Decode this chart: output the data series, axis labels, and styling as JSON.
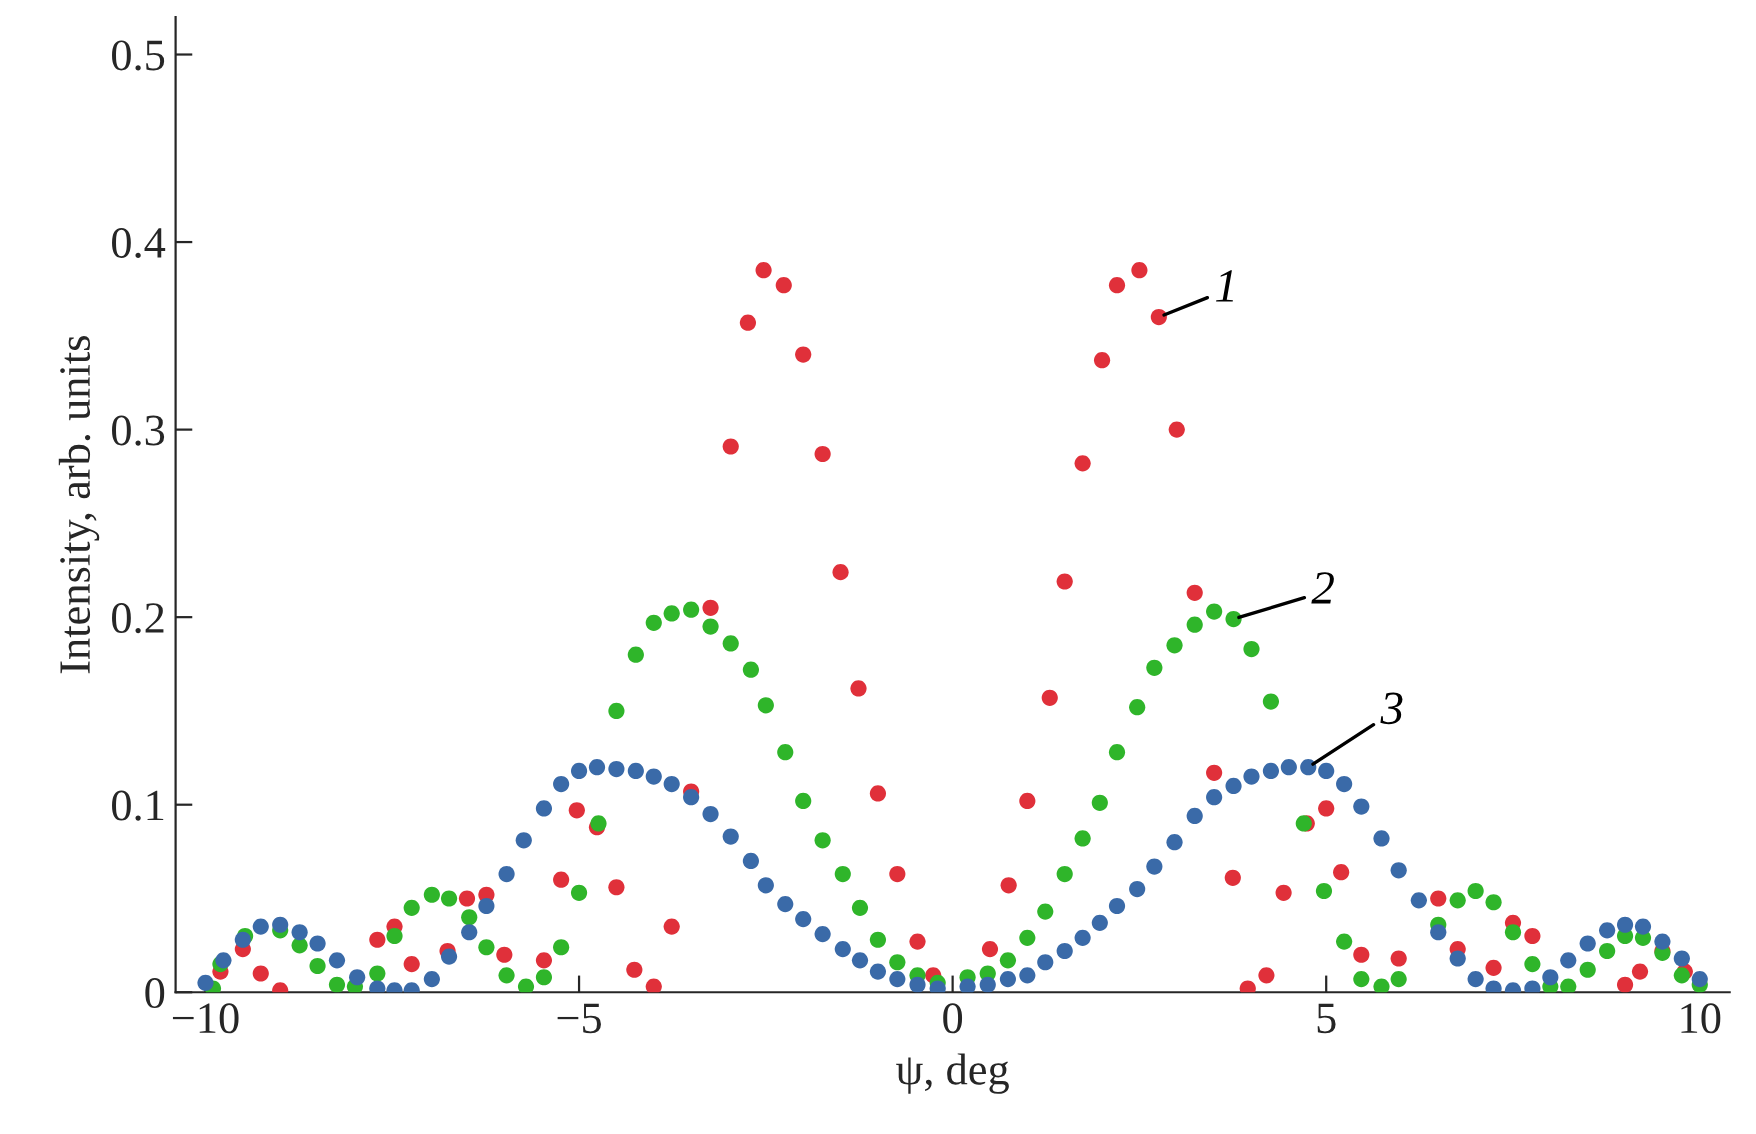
{
  "chart_data": {
    "type": "scatter",
    "xlabel": "ψ, deg",
    "ylabel": "Intensity, arb. units",
    "xlim": [
      -10.4,
      10.4
    ],
    "ylim": [
      0,
      0.52
    ],
    "xticks": [
      {
        "value": -10,
        "label": "−10"
      },
      {
        "value": -5,
        "label": "−5"
      },
      0,
      5,
      10
    ],
    "yticks": [
      0,
      0.1,
      0.2,
      0.3,
      0.4,
      0.5
    ],
    "grid": false,
    "marker": "circle",
    "series": [
      {
        "name": "1",
        "color": "#e0303a",
        "x": [
          -9.8,
          -9.5,
          -9.26,
          -9.0,
          -7.7,
          -7.47,
          -7.24,
          -6.76,
          -6.5,
          -6.24,
          -6.0,
          -5.47,
          -5.24,
          -5.03,
          -4.76,
          -4.5,
          -4.26,
          -4.0,
          -3.76,
          -3.5,
          -3.24,
          -2.97,
          -2.74,
          -2.53,
          -2.26,
          -2.0,
          -1.74,
          -1.5,
          -1.26,
          -1.0,
          -0.74,
          -0.47,
          -0.26,
          0.5,
          0.75,
          1.0,
          1.3,
          1.5,
          1.74,
          2.0,
          2.2,
          2.5,
          2.76,
          3.0,
          3.24,
          3.5,
          3.75,
          3.95,
          4.2,
          4.43,
          4.74,
          5.0,
          5.2,
          5.47,
          5.97,
          6.5,
          6.76,
          7.24,
          7.5,
          7.76,
          9.0,
          9.2,
          9.5,
          9.8
        ],
        "values": [
          0.011,
          0.023,
          0.01,
          0.001,
          0.028,
          0.035,
          0.015,
          0.022,
          0.05,
          0.052,
          0.02,
          0.017,
          0.06,
          0.097,
          0.088,
          0.056,
          0.012,
          0.003,
          0.035,
          0.107,
          0.205,
          0.291,
          0.357,
          0.385,
          0.377,
          0.34,
          0.287,
          0.224,
          0.162,
          0.106,
          0.063,
          0.027,
          0.009,
          0.023,
          0.057,
          0.102,
          0.157,
          0.219,
          0.282,
          0.337,
          0.377,
          0.385,
          0.36,
          0.3,
          0.213,
          0.117,
          0.061,
          0.002,
          0.009,
          0.053,
          0.09,
          0.098,
          0.064,
          0.02,
          0.018,
          0.05,
          0.023,
          0.013,
          0.037,
          0.03,
          0.004,
          0.011,
          0.022,
          0.011
        ]
      },
      {
        "name": "2",
        "color": "#2fb52a",
        "x": [
          -9.9,
          -9.8,
          -9.47,
          -9.0,
          -8.74,
          -8.5,
          -8.24,
          -8.0,
          -7.7,
          -7.47,
          -7.24,
          -6.97,
          -6.74,
          -6.47,
          -6.24,
          -5.97,
          -5.71,
          -5.47,
          -5.24,
          -5.0,
          -4.74,
          -4.5,
          -4.24,
          -4.0,
          -3.76,
          -3.5,
          -3.24,
          -2.97,
          -2.7,
          -2.5,
          -2.24,
          -2.0,
          -1.74,
          -1.47,
          -1.24,
          -1.0,
          -0.74,
          -0.47,
          -0.2,
          0.2,
          0.47,
          0.74,
          1.0,
          1.24,
          1.5,
          1.74,
          1.97,
          2.2,
          2.47,
          2.7,
          2.97,
          3.24,
          3.5,
          3.76,
          4.0,
          4.26,
          4.7,
          4.97,
          5.24,
          5.47,
          5.74,
          5.97,
          6.5,
          6.76,
          7.0,
          7.24,
          7.5,
          7.76,
          8.0,
          8.24,
          8.5,
          8.76,
          9.0,
          9.24,
          9.5,
          9.76,
          10.0
        ],
        "values": [
          0.002,
          0.015,
          0.03,
          0.033,
          0.025,
          0.014,
          0.004,
          0.003,
          0.01,
          0.03,
          0.045,
          0.052,
          0.05,
          0.04,
          0.024,
          0.009,
          0.003,
          0.008,
          0.024,
          0.053,
          0.09,
          0.15,
          0.18,
          0.197,
          0.202,
          0.204,
          0.195,
          0.186,
          0.172,
          0.153,
          0.128,
          0.102,
          0.081,
          0.063,
          0.045,
          0.028,
          0.016,
          0.009,
          0.005,
          0.008,
          0.01,
          0.017,
          0.029,
          0.043,
          0.063,
          0.082,
          0.101,
          0.128,
          0.152,
          0.173,
          0.185,
          0.196,
          0.203,
          0.199,
          0.183,
          0.155,
          0.09,
          0.054,
          0.027,
          0.007,
          0.003,
          0.007,
          0.036,
          0.049,
          0.054,
          0.048,
          0.032,
          0.015,
          0.003,
          0.003,
          0.012,
          0.022,
          0.03,
          0.029,
          0.021,
          0.009,
          0.004
        ]
      },
      {
        "name": "3",
        "color": "#3a6aa8",
        "x": [
          -10.0,
          -9.76,
          -9.5,
          -9.26,
          -9.0,
          -8.74,
          -8.5,
          -8.24,
          -7.97,
          -7.7,
          -7.47,
          -7.24,
          -6.97,
          -6.74,
          -6.47,
          -6.24,
          -5.97,
          -5.74,
          -5.47,
          -5.24,
          -5.0,
          -4.76,
          -4.5,
          -4.24,
          -4.0,
          -3.76,
          -3.5,
          -3.24,
          -2.97,
          -2.7,
          -2.5,
          -2.24,
          -2.0,
          -1.74,
          -1.47,
          -1.24,
          -1.0,
          -0.74,
          -0.47,
          -0.2,
          0.2,
          0.47,
          0.74,
          1.0,
          1.24,
          1.5,
          1.74,
          1.97,
          2.2,
          2.47,
          2.7,
          2.97,
          3.24,
          3.5,
          3.76,
          4.0,
          4.26,
          4.5,
          4.76,
          5.0,
          5.24,
          5.47,
          5.74,
          5.97,
          6.24,
          6.5,
          6.76,
          7.0,
          7.24,
          7.5,
          7.76,
          8.0,
          8.24,
          8.5,
          8.76,
          9.0,
          9.24,
          9.5,
          9.76,
          10.0
        ],
        "values": [
          0.005,
          0.017,
          0.028,
          0.035,
          0.036,
          0.032,
          0.026,
          0.017,
          0.008,
          0.002,
          0.001,
          0.001,
          0.007,
          0.019,
          0.032,
          0.046,
          0.063,
          0.081,
          0.098,
          0.111,
          0.118,
          0.12,
          0.119,
          0.118,
          0.115,
          0.111,
          0.104,
          0.095,
          0.083,
          0.07,
          0.057,
          0.047,
          0.039,
          0.031,
          0.023,
          0.017,
          0.011,
          0.007,
          0.004,
          0.002,
          0.003,
          0.004,
          0.007,
          0.009,
          0.016,
          0.022,
          0.029,
          0.037,
          0.046,
          0.055,
          0.067,
          0.08,
          0.094,
          0.104,
          0.11,
          0.115,
          0.118,
          0.12,
          0.12,
          0.118,
          0.111,
          0.099,
          0.082,
          0.065,
          0.049,
          0.032,
          0.018,
          0.007,
          0.002,
          0.001,
          0.002,
          0.008,
          0.017,
          0.026,
          0.033,
          0.036,
          0.035,
          0.027,
          0.018,
          0.007
        ]
      }
    ]
  }
}
